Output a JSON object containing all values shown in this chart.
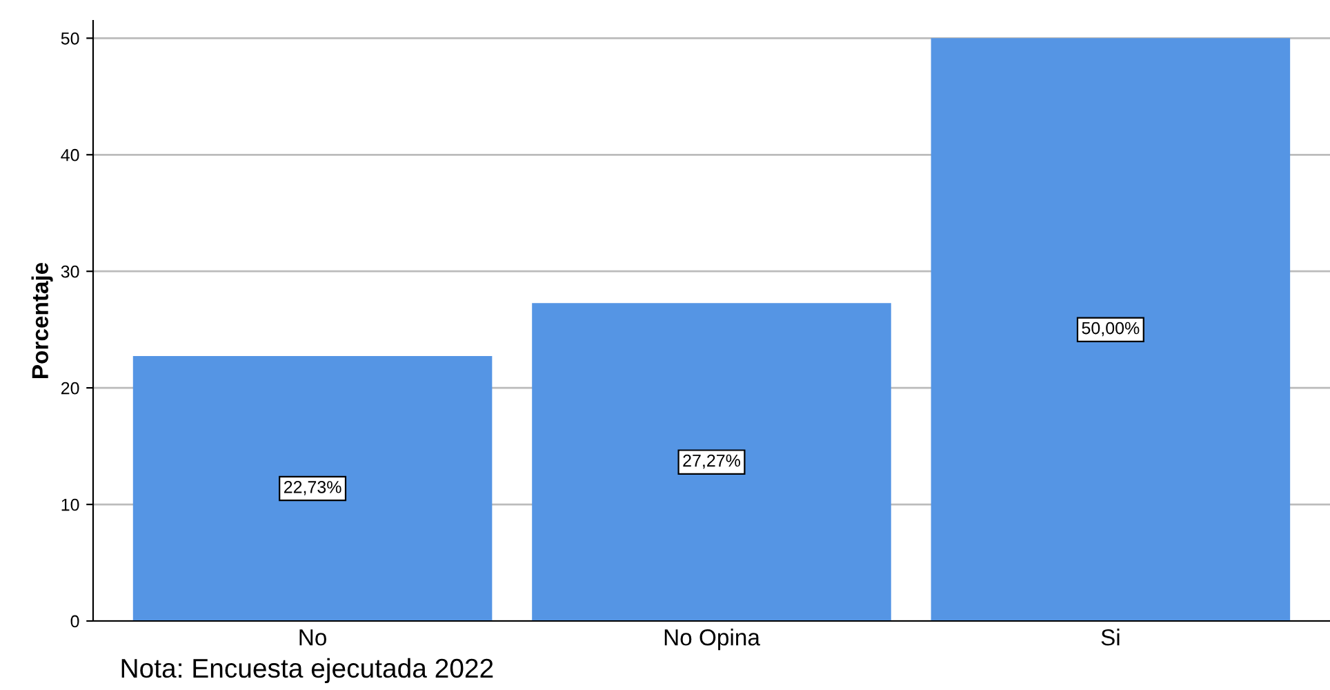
{
  "chart_data": {
    "type": "bar",
    "ylabel": "Porcentaje",
    "categories": [
      "No",
      "No Opina",
      "Si"
    ],
    "values": [
      22.73,
      27.27,
      50.0
    ],
    "value_labels": [
      "22,73%",
      "27,27%",
      "50,00%"
    ],
    "color": "#5595e4",
    "ylim": [
      0,
      51.5
    ],
    "yticks": [
      0,
      10,
      20,
      30,
      40,
      50
    ],
    "grid": "y",
    "legend": false,
    "annotations": [
      "Nota: Encuesta ejecutada 2022"
    ]
  }
}
